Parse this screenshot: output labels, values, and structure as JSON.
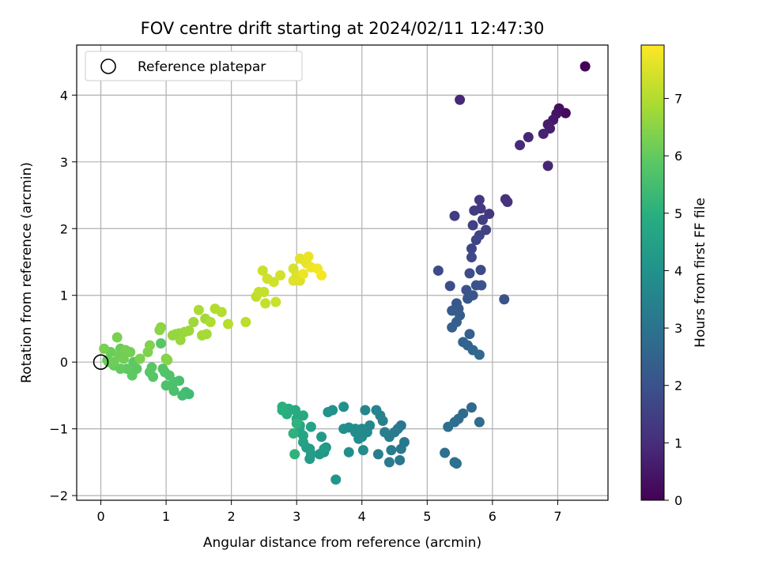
{
  "chart_data": {
    "type": "scatter",
    "title": "FOV centre drift starting at 2024/02/11 12:47:30",
    "xlabel": "Angular distance from reference (arcmin)",
    "ylabel": "Rotation from reference (arcmin)",
    "xlim": [
      -0.37,
      7.77
    ],
    "ylim": [
      -2.07,
      4.75
    ],
    "xticks": [
      0,
      1,
      2,
      3,
      4,
      5,
      6,
      7
    ],
    "yticks": [
      -2,
      -1,
      0,
      1,
      2,
      3,
      4
    ],
    "grid": true,
    "legend": {
      "placement": "top-left",
      "entries": [
        "Reference platepar"
      ]
    },
    "reference_point": {
      "x": 0,
      "y": 0
    },
    "colorbar": {
      "label": "Hours from first FF file",
      "range": [
        0,
        7.93
      ],
      "ticks": [
        0,
        1,
        2,
        3,
        4,
        5,
        6,
        7
      ],
      "colormap": "viridis"
    },
    "series": [
      {
        "points": [
          [
            7.42,
            4.43,
            0.05
          ],
          [
            7.12,
            3.73,
            0.2
          ],
          [
            7.02,
            3.8,
            0.3
          ],
          [
            6.98,
            3.72,
            0.4
          ],
          [
            6.93,
            3.63,
            0.5
          ],
          [
            6.85,
            3.56,
            0.6
          ],
          [
            6.88,
            3.5,
            0.65
          ],
          [
            6.78,
            3.42,
            0.75
          ],
          [
            6.55,
            3.37,
            0.85
          ],
          [
            6.42,
            3.25,
            0.95
          ],
          [
            6.85,
            2.94,
            0.85
          ],
          [
            5.5,
            3.93,
            0.9
          ],
          [
            6.2,
            2.44,
            1.1
          ],
          [
            6.23,
            2.4,
            1.15
          ],
          [
            5.95,
            2.22,
            1.25
          ],
          [
            5.8,
            2.43,
            1.3
          ],
          [
            5.82,
            2.3,
            1.35
          ],
          [
            5.72,
            2.27,
            1.4
          ],
          [
            5.85,
            2.13,
            1.45
          ],
          [
            5.7,
            2.05,
            1.5
          ],
          [
            5.9,
            1.98,
            1.55
          ],
          [
            5.8,
            1.9,
            1.6
          ],
          [
            5.75,
            1.83,
            1.65
          ],
          [
            5.42,
            2.19,
            1.4
          ],
          [
            5.68,
            1.7,
            1.7
          ],
          [
            5.68,
            1.57,
            1.75
          ],
          [
            5.82,
            1.38,
            1.8
          ],
          [
            5.65,
            1.33,
            1.85
          ],
          [
            5.17,
            1.37,
            1.8
          ],
          [
            5.35,
            1.14,
            1.9
          ],
          [
            5.6,
            1.08,
            1.95
          ],
          [
            5.75,
            1.15,
            2.0
          ],
          [
            5.83,
            1.15,
            2.05
          ],
          [
            5.7,
            1.0,
            2.1
          ],
          [
            5.62,
            0.95,
            2.1
          ],
          [
            6.18,
            0.94,
            2.05
          ],
          [
            5.45,
            0.88,
            2.15
          ],
          [
            5.48,
            0.8,
            2.2
          ],
          [
            5.38,
            0.77,
            2.25
          ],
          [
            5.5,
            0.7,
            2.3
          ],
          [
            5.45,
            0.6,
            2.35
          ],
          [
            5.38,
            0.52,
            2.4
          ],
          [
            5.65,
            0.42,
            2.45
          ],
          [
            5.55,
            0.3,
            2.5
          ],
          [
            5.62,
            0.25,
            2.55
          ],
          [
            5.7,
            0.18,
            2.6
          ],
          [
            5.8,
            0.11,
            2.65
          ],
          [
            5.68,
            -0.68,
            2.7
          ],
          [
            5.55,
            -0.77,
            2.75
          ],
          [
            5.48,
            -0.85,
            2.8
          ],
          [
            5.42,
            -0.9,
            2.85
          ],
          [
            5.32,
            -0.97,
            2.9
          ],
          [
            5.8,
            -0.9,
            2.8
          ],
          [
            5.27,
            -1.36,
            2.9
          ],
          [
            5.42,
            -1.5,
            2.95
          ],
          [
            5.45,
            -1.52,
            2.95
          ],
          [
            4.6,
            -0.95,
            3.1
          ],
          [
            4.55,
            -1.0,
            3.15
          ],
          [
            4.65,
            -1.2,
            3.2
          ],
          [
            4.5,
            -1.05,
            3.25
          ],
          [
            4.42,
            -1.12,
            3.3
          ],
          [
            4.35,
            -1.05,
            3.35
          ],
          [
            4.6,
            -1.3,
            3.2
          ],
          [
            4.45,
            -1.32,
            3.25
          ],
          [
            4.58,
            -1.47,
            3.2
          ],
          [
            4.42,
            -1.5,
            3.25
          ],
          [
            4.25,
            -1.38,
            3.35
          ],
          [
            4.32,
            -0.88,
            3.45
          ],
          [
            4.28,
            -0.8,
            3.5
          ],
          [
            4.22,
            -0.72,
            3.55
          ],
          [
            4.05,
            -0.72,
            3.6
          ],
          [
            4.12,
            -0.95,
            3.65
          ],
          [
            4.0,
            -1.0,
            3.7
          ],
          [
            4.08,
            -1.05,
            3.7
          ],
          [
            4.0,
            -1.12,
            3.75
          ],
          [
            3.9,
            -1.0,
            3.8
          ],
          [
            3.95,
            -1.15,
            3.8
          ],
          [
            3.8,
            -0.98,
            3.85
          ],
          [
            3.9,
            -1.05,
            3.85
          ],
          [
            3.72,
            -1.0,
            3.9
          ],
          [
            4.02,
            -1.32,
            3.8
          ],
          [
            3.8,
            -1.35,
            3.9
          ],
          [
            3.72,
            -0.67,
            3.95
          ],
          [
            3.55,
            -0.72,
            4.0
          ],
          [
            3.48,
            -0.75,
            4.05
          ],
          [
            3.6,
            -1.76,
            4.1
          ],
          [
            3.45,
            -1.28,
            4.1
          ],
          [
            3.42,
            -1.35,
            4.15
          ],
          [
            3.35,
            -1.38,
            4.2
          ],
          [
            3.38,
            -1.12,
            4.25
          ],
          [
            3.42,
            -1.3,
            4.3
          ],
          [
            3.22,
            -1.38,
            4.35
          ],
          [
            3.2,
            -1.45,
            4.35
          ],
          [
            3.2,
            -1.3,
            4.4
          ],
          [
            3.15,
            -1.28,
            4.45
          ],
          [
            3.1,
            -1.2,
            4.5
          ],
          [
            3.22,
            -0.97,
            4.55
          ],
          [
            3.1,
            -1.1,
            4.6
          ],
          [
            3.05,
            -1.05,
            4.65
          ],
          [
            3.05,
            -0.95,
            4.7
          ],
          [
            3.0,
            -0.85,
            4.75
          ],
          [
            3.1,
            -0.8,
            4.8
          ],
          [
            2.98,
            -0.72,
            4.85
          ],
          [
            2.88,
            -0.7,
            4.9
          ],
          [
            2.85,
            -0.78,
            4.95
          ],
          [
            2.78,
            -0.67,
            5.0
          ],
          [
            2.78,
            -0.72,
            5.0
          ],
          [
            2.95,
            -1.07,
            5.05
          ],
          [
            2.97,
            -1.38,
            5.1
          ],
          [
            3.0,
            -0.92,
            5.1
          ],
          [
            1.35,
            -0.48,
            5.4
          ],
          [
            1.3,
            -0.45,
            5.45
          ],
          [
            1.25,
            -0.5,
            5.5
          ],
          [
            1.2,
            -0.28,
            5.55
          ],
          [
            1.12,
            -0.3,
            5.6
          ],
          [
            1.12,
            -0.43,
            5.6
          ],
          [
            1.0,
            -0.35,
            5.65
          ],
          [
            1.05,
            -0.2,
            5.7
          ],
          [
            0.98,
            -0.15,
            5.72
          ],
          [
            0.95,
            -0.1,
            5.75
          ],
          [
            0.8,
            -0.22,
            5.8
          ],
          [
            0.75,
            -0.15,
            5.82
          ],
          [
            0.78,
            -0.08,
            5.85
          ],
          [
            0.92,
            0.28,
            5.85
          ],
          [
            0.55,
            -0.1,
            5.9
          ],
          [
            0.5,
            0.0,
            5.92
          ],
          [
            0.48,
            -0.2,
            5.95
          ],
          [
            0.4,
            -0.1,
            5.97
          ],
          [
            0.3,
            -0.1,
            6.0
          ],
          [
            0.2,
            -0.05,
            6.02
          ],
          [
            0.12,
            0.0,
            6.05
          ],
          [
            0.1,
            0.03,
            6.07
          ],
          [
            0.15,
            0.15,
            6.1
          ],
          [
            0.3,
            0.2,
            6.12
          ],
          [
            0.2,
            0.0,
            6.15
          ],
          [
            0.28,
            0.1,
            6.18
          ],
          [
            0.35,
            0.05,
            6.2
          ],
          [
            0.45,
            0.15,
            6.22
          ],
          [
            0.38,
            0.18,
            6.25
          ],
          [
            0.05,
            0.2,
            6.28
          ],
          [
            0.25,
            0.37,
            6.3
          ],
          [
            0.6,
            0.05,
            6.32
          ],
          [
            0.72,
            0.15,
            6.35
          ],
          [
            0.75,
            0.25,
            6.38
          ],
          [
            1.0,
            0.05,
            6.4
          ],
          [
            1.02,
            0.03,
            6.45
          ],
          [
            0.9,
            0.48,
            6.5
          ],
          [
            0.92,
            0.52,
            6.5
          ],
          [
            1.15,
            0.42,
            6.6
          ],
          [
            1.1,
            0.4,
            6.62
          ],
          [
            1.2,
            0.43,
            6.65
          ],
          [
            1.22,
            0.33,
            6.68
          ],
          [
            1.28,
            0.45,
            6.7
          ],
          [
            1.35,
            0.47,
            6.72
          ],
          [
            1.42,
            0.6,
            6.75
          ],
          [
            1.6,
            0.65,
            6.8
          ],
          [
            1.55,
            0.4,
            6.82
          ],
          [
            1.62,
            0.42,
            6.85
          ],
          [
            1.5,
            0.78,
            6.9
          ],
          [
            1.68,
            0.6,
            6.95
          ],
          [
            1.75,
            0.8,
            7.0
          ],
          [
            1.85,
            0.75,
            7.02
          ],
          [
            1.95,
            0.57,
            7.05
          ],
          [
            2.22,
            0.6,
            7.1
          ],
          [
            2.38,
            0.98,
            7.15
          ],
          [
            2.42,
            1.05,
            7.2
          ],
          [
            2.52,
            0.88,
            7.22
          ],
          [
            2.5,
            1.05,
            7.25
          ],
          [
            2.68,
            0.9,
            7.28
          ],
          [
            2.48,
            1.37,
            7.3
          ],
          [
            2.55,
            1.25,
            7.35
          ],
          [
            2.65,
            1.2,
            7.38
          ],
          [
            2.75,
            1.3,
            7.4
          ],
          [
            2.95,
            1.4,
            7.45
          ],
          [
            3.0,
            1.3,
            7.5
          ],
          [
            3.05,
            1.22,
            7.52
          ],
          [
            2.95,
            1.22,
            7.55
          ],
          [
            3.05,
            1.55,
            7.6
          ],
          [
            3.15,
            1.48,
            7.65
          ],
          [
            3.18,
            1.58,
            7.7
          ],
          [
            3.1,
            1.32,
            7.72
          ],
          [
            3.22,
            1.42,
            7.75
          ],
          [
            3.32,
            1.4,
            7.8
          ],
          [
            3.38,
            1.3,
            7.85
          ]
        ]
      }
    ]
  }
}
